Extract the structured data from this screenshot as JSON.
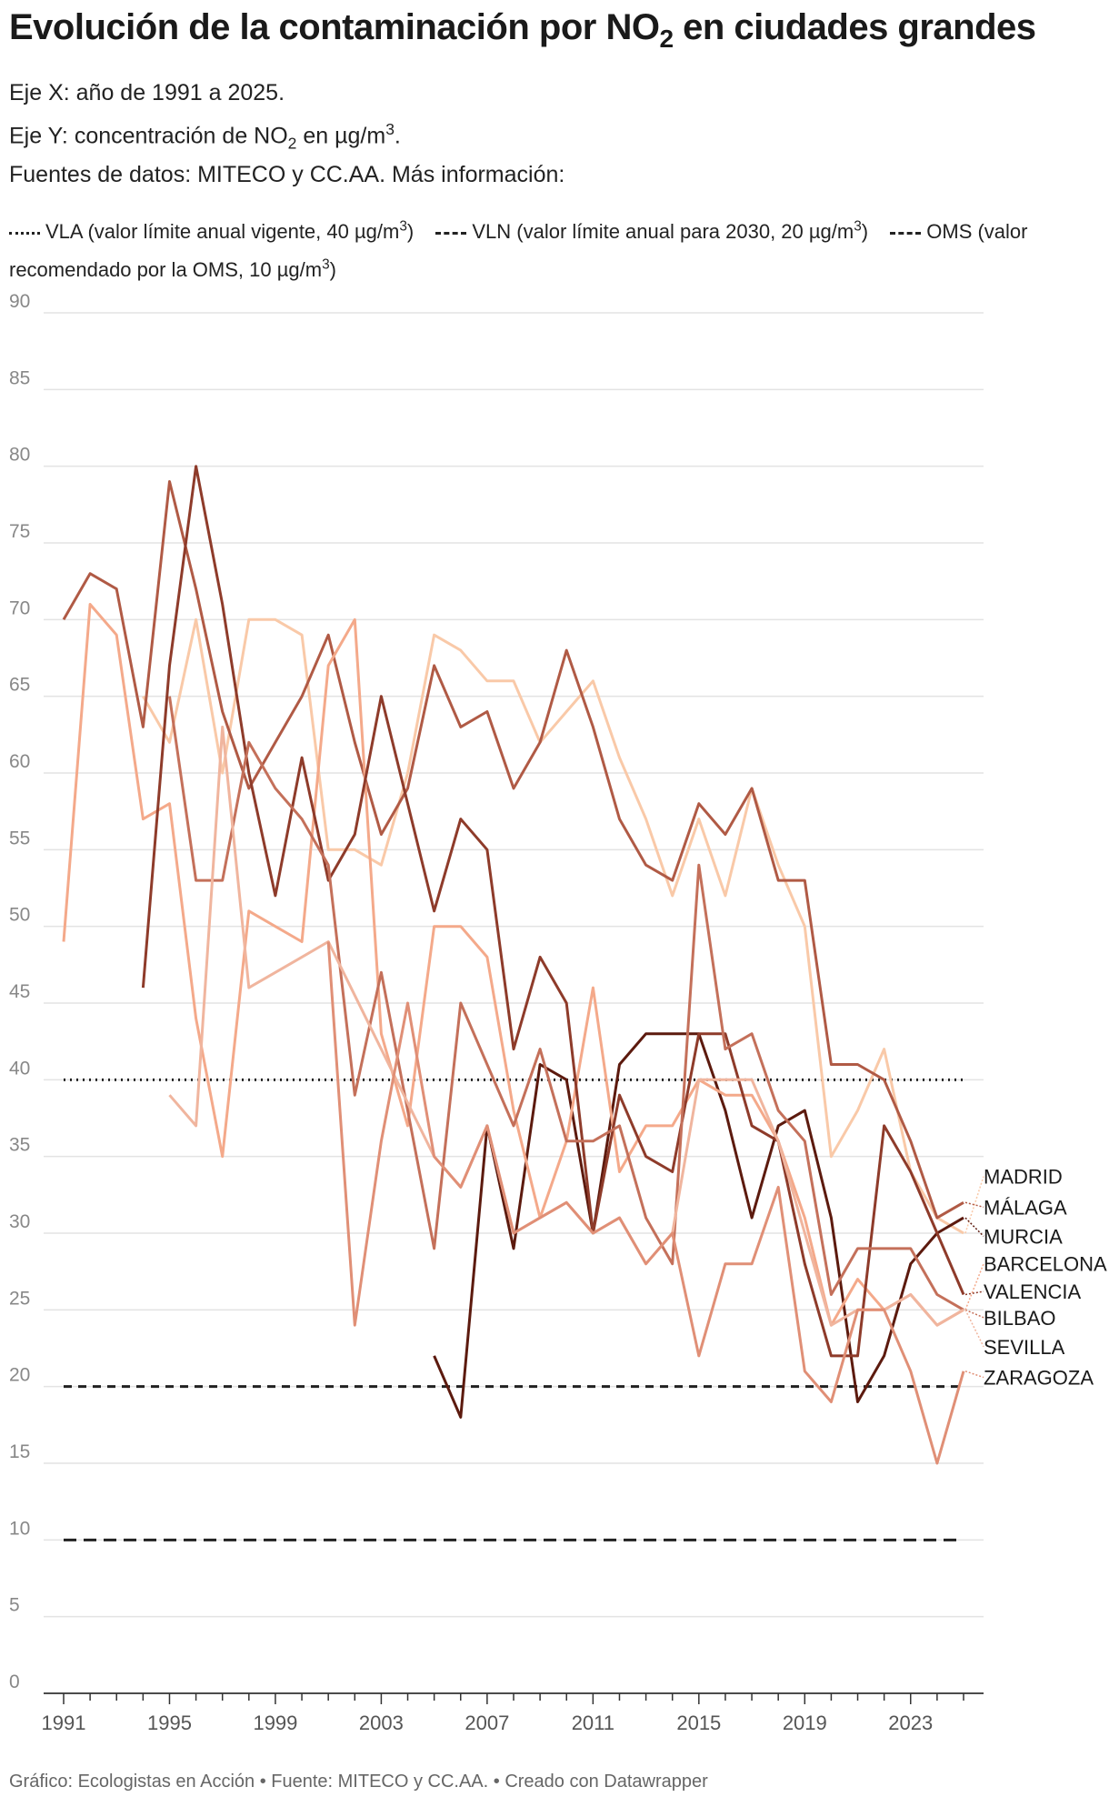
{
  "title": {
    "pre": "Evolución de la contaminación por NO",
    "sub": "2",
    "post": " en ciudades grandes"
  },
  "subtitle": {
    "line1": "Eje X: año de 1991 a 2025.",
    "line2": {
      "pre": "Eje Y: concentración de NO",
      "sub": "2",
      "mid": " en µg/m",
      "sup": "3",
      "post": "."
    },
    "line3": "Fuentes de datos: MITECO y CC.AA. Más información:"
  },
  "legend": {
    "vla": {
      "pre": "VLA (valor límite anual vigente, 40 µg/m",
      "sup": "3",
      "post": ")"
    },
    "vln": {
      "pre": "VLN (valor límite anual para 2030, 20 µg/m",
      "sup": "3",
      "post": ")"
    },
    "oms": {
      "pre": "OMS (valor recomendado por la OMS, 10 µg/m",
      "sup": "3",
      "post": ")"
    }
  },
  "footer": "Gráfico: Ecologistas en Acción • Fuente: MITECO y CC.AA. • Creado con Datawrapper",
  "chart_data": {
    "type": "line",
    "xlim": [
      1991,
      2025
    ],
    "ylim": [
      0,
      90
    ],
    "yticks": [
      0,
      5,
      10,
      15,
      20,
      25,
      30,
      35,
      40,
      45,
      50,
      55,
      60,
      65,
      70,
      75,
      80,
      85,
      90
    ],
    "xticks": [
      1991,
      1995,
      1999,
      2003,
      2007,
      2011,
      2015,
      2019,
      2023
    ],
    "grid": true,
    "reference_lines": [
      {
        "id": "vla",
        "value": 40,
        "style": "dotted"
      },
      {
        "id": "vln",
        "value": 20,
        "style": "dashed"
      },
      {
        "id": "oms",
        "value": 10,
        "style": "dashed"
      }
    ],
    "series": [
      {
        "name": "MADRID",
        "color": "#f9c9a8",
        "points": [
          [
            1994,
            65
          ],
          [
            1995,
            62
          ],
          [
            1996,
            70
          ],
          [
            1997,
            60
          ],
          [
            1998,
            70
          ],
          [
            1999,
            70
          ],
          [
            2000,
            69
          ],
          [
            2001,
            55
          ],
          [
            2002,
            55
          ],
          [
            2003,
            54
          ],
          [
            2004,
            60
          ],
          [
            2005,
            69
          ],
          [
            2006,
            68
          ],
          [
            2007,
            66
          ],
          [
            2008,
            66
          ],
          [
            2009,
            62
          ],
          [
            2010,
            64
          ],
          [
            2011,
            66
          ],
          [
            2012,
            61
          ],
          [
            2013,
            57
          ],
          [
            2014,
            52
          ],
          [
            2015,
            57
          ],
          [
            2016,
            52
          ],
          [
            2017,
            59
          ],
          [
            2018,
            54
          ],
          [
            2019,
            50
          ],
          [
            2020,
            35
          ],
          [
            2021,
            38
          ],
          [
            2022,
            42
          ],
          [
            2023,
            34
          ],
          [
            2024,
            31
          ],
          [
            2025,
            30
          ]
        ]
      },
      {
        "name": "MÁLAGA",
        "color": "#b05a45",
        "points": [
          [
            1991,
            70
          ],
          [
            1992,
            73
          ],
          [
            1993,
            72
          ],
          [
            1994,
            63
          ],
          [
            1995,
            79
          ],
          [
            1996,
            72
          ],
          [
            1997,
            64
          ],
          [
            1998,
            59
          ],
          [
            1999,
            62
          ],
          [
            2000,
            65
          ],
          [
            2001,
            69
          ],
          [
            2002,
            62
          ],
          [
            2003,
            56
          ],
          [
            2004,
            59
          ],
          [
            2005,
            67
          ],
          [
            2006,
            63
          ],
          [
            2007,
            64
          ],
          [
            2008,
            59
          ],
          [
            2009,
            62
          ],
          [
            2010,
            68
          ],
          [
            2011,
            63
          ],
          [
            2012,
            57
          ],
          [
            2013,
            54
          ],
          [
            2014,
            53
          ],
          [
            2015,
            58
          ],
          [
            2016,
            56
          ],
          [
            2017,
            59
          ],
          [
            2018,
            53
          ],
          [
            2019,
            53
          ],
          [
            2020,
            41
          ],
          [
            2021,
            41
          ],
          [
            2022,
            40
          ],
          [
            2023,
            36
          ],
          [
            2024,
            31
          ],
          [
            2025,
            32
          ]
        ]
      },
      {
        "name": "MURCIA",
        "color": "#5c1a0e",
        "points": [
          [
            2005,
            22
          ],
          [
            2006,
            18
          ],
          [
            2007,
            37
          ],
          [
            2008,
            29
          ],
          [
            2009,
            41
          ],
          [
            2010,
            40
          ],
          [
            2011,
            30
          ],
          [
            2012,
            41
          ],
          [
            2013,
            43
          ],
          [
            2014,
            43
          ],
          [
            2015,
            43
          ],
          [
            2016,
            38
          ],
          [
            2017,
            31
          ],
          [
            2018,
            37
          ],
          [
            2019,
            38
          ],
          [
            2020,
            31
          ],
          [
            2021,
            19
          ],
          [
            2022,
            22
          ],
          [
            2023,
            28
          ],
          [
            2024,
            30
          ],
          [
            2025,
            31
          ]
        ]
      },
      {
        "name": "BARCELONA",
        "color": "#f4a98a",
        "points": [
          [
            1991,
            49
          ],
          [
            1992,
            71
          ],
          [
            1993,
            69
          ],
          [
            1994,
            57
          ],
          [
            1995,
            58
          ],
          [
            1996,
            44
          ],
          [
            1997,
            35
          ],
          [
            1998,
            51
          ],
          [
            1999,
            50
          ],
          [
            2000,
            49
          ],
          [
            2001,
            67
          ],
          [
            2002,
            70
          ],
          [
            2003,
            43
          ],
          [
            2004,
            37
          ],
          [
            2005,
            50
          ],
          [
            2006,
            50
          ],
          [
            2007,
            48
          ],
          [
            2008,
            38
          ],
          [
            2009,
            31
          ],
          [
            2010,
            36
          ],
          [
            2011,
            46
          ],
          [
            2012,
            34
          ],
          [
            2013,
            37
          ],
          [
            2014,
            37
          ],
          [
            2015,
            40
          ],
          [
            2016,
            39
          ],
          [
            2017,
            39
          ],
          [
            2018,
            36
          ],
          [
            2019,
            31
          ],
          [
            2020,
            24
          ],
          [
            2021,
            27
          ],
          [
            2022,
            25
          ],
          [
            2023,
            26
          ],
          [
            2024,
            24
          ],
          [
            2025,
            25
          ]
        ]
      },
      {
        "name": "VALENCIA",
        "color": "#8e3b2a",
        "points": [
          [
            1994,
            46
          ],
          [
            1995,
            67
          ],
          [
            1996,
            80
          ],
          [
            1997,
            71
          ],
          [
            1998,
            60
          ],
          [
            1999,
            52
          ],
          [
            2000,
            61
          ],
          [
            2001,
            53
          ],
          [
            2002,
            56
          ],
          [
            2003,
            65
          ],
          [
            2004,
            58
          ],
          [
            2005,
            51
          ],
          [
            2006,
            57
          ],
          [
            2007,
            55
          ],
          [
            2008,
            42
          ],
          [
            2009,
            48
          ],
          [
            2010,
            45
          ],
          [
            2011,
            30
          ],
          [
            2012,
            39
          ],
          [
            2013,
            35
          ],
          [
            2014,
            34
          ],
          [
            2015,
            43
          ],
          [
            2016,
            43
          ],
          [
            2017,
            37
          ],
          [
            2018,
            36
          ],
          [
            2019,
            28
          ],
          [
            2020,
            22
          ],
          [
            2021,
            22
          ],
          [
            2022,
            37
          ],
          [
            2023,
            34
          ],
          [
            2024,
            30
          ],
          [
            2025,
            26
          ]
        ]
      },
      {
        "name": "BILBAO",
        "color": "#c4705a",
        "points": [
          [
            1995,
            65
          ],
          [
            1996,
            53
          ],
          [
            1997,
            53
          ],
          [
            1998,
            62
          ],
          [
            1999,
            59
          ],
          [
            2000,
            57
          ],
          [
            2001,
            54
          ],
          [
            2002,
            39
          ],
          [
            2003,
            47
          ],
          [
            2004,
            38
          ],
          [
            2005,
            29
          ],
          [
            2006,
            45
          ],
          [
            2007,
            41
          ],
          [
            2008,
            37
          ],
          [
            2009,
            42
          ],
          [
            2010,
            36
          ],
          [
            2011,
            36
          ],
          [
            2012,
            37
          ],
          [
            2013,
            31
          ],
          [
            2014,
            28
          ],
          [
            2015,
            54
          ],
          [
            2016,
            42
          ],
          [
            2017,
            43
          ],
          [
            2018,
            38
          ],
          [
            2019,
            36
          ],
          [
            2020,
            26
          ],
          [
            2021,
            29
          ],
          [
            2022,
            29
          ],
          [
            2023,
            29
          ],
          [
            2024,
            26
          ],
          [
            2025,
            25
          ]
        ]
      },
      {
        "name": "SEVILLA",
        "color": "#f0b59e",
        "points": [
          [
            1995,
            39
          ],
          [
            1996,
            37
          ],
          [
            1997,
            63
          ],
          [
            1998,
            46
          ],
          [
            1999,
            47
          ],
          [
            2000,
            48
          ],
          [
            2001,
            49
          ],
          [
            2005,
            35
          ],
          [
            2006,
            33
          ],
          [
            2007,
            37
          ],
          [
            2008,
            30
          ],
          [
            2009,
            31
          ],
          [
            2010,
            32
          ],
          [
            2011,
            30
          ],
          [
            2012,
            31
          ],
          [
            2013,
            28
          ],
          [
            2014,
            30
          ],
          [
            2015,
            40
          ],
          [
            2016,
            40
          ],
          [
            2017,
            40
          ],
          [
            2018,
            36
          ],
          [
            2019,
            30
          ],
          [
            2020,
            24
          ],
          [
            2021,
            25
          ],
          [
            2022,
            25
          ],
          [
            2023,
            26
          ],
          [
            2024,
            24
          ],
          [
            2025,
            25
          ]
        ]
      },
      {
        "name": "ZARAGOZA",
        "color": "#e08f76",
        "points": [
          [
            2001,
            49
          ],
          [
            2002,
            24
          ],
          [
            2003,
            36
          ],
          [
            2004,
            45
          ],
          [
            2005,
            35
          ],
          [
            2006,
            33
          ],
          [
            2007,
            37
          ],
          [
            2008,
            30
          ],
          [
            2009,
            31
          ],
          [
            2010,
            32
          ],
          [
            2011,
            30
          ],
          [
            2012,
            31
          ],
          [
            2013,
            28
          ],
          [
            2014,
            30
          ],
          [
            2015,
            22
          ],
          [
            2016,
            28
          ],
          [
            2017,
            28
          ],
          [
            2018,
            33
          ],
          [
            2019,
            21
          ],
          [
            2020,
            19
          ],
          [
            2021,
            25
          ],
          [
            2022,
            25
          ],
          [
            2023,
            21
          ],
          [
            2024,
            15
          ],
          [
            2025,
            21
          ]
        ]
      }
    ],
    "labels": [
      {
        "name": "MADRID",
        "label_y": 33.7
      },
      {
        "name": "MÁLAGA",
        "label_y": 31.7
      },
      {
        "name": "MURCIA",
        "label_y": 29.8
      },
      {
        "name": "BARCELONA",
        "label_y": 28.0
      },
      {
        "name": "VALENCIA",
        "label_y": 26.2
      },
      {
        "name": "BILBAO",
        "label_y": 24.5
      },
      {
        "name": "SEVILLA",
        "label_y": 22.6
      },
      {
        "name": "ZARAGOZA",
        "label_y": 20.6
      }
    ]
  }
}
